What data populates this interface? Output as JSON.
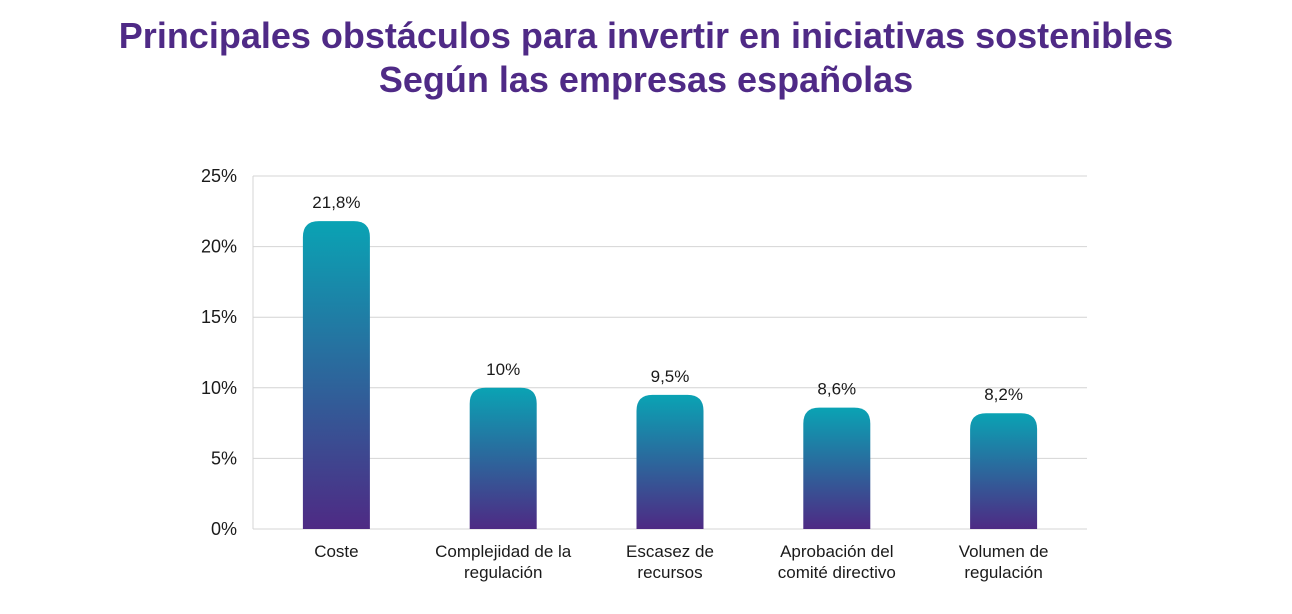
{
  "title": {
    "line1": "Principales obstáculos para invertir en iniciativas sostenibles",
    "line2": "Según las empresas españolas"
  },
  "colors": {
    "title": "#4f2a86",
    "bar_top": "#0aa3b4",
    "bar_bottom": "#4e2a84",
    "gridline": "#d4d4d4"
  },
  "chart_data": {
    "type": "bar",
    "categories": [
      [
        "Coste"
      ],
      [
        "Complejidad de la",
        "regulación"
      ],
      [
        "Escasez de",
        "recursos"
      ],
      [
        "Aprobación del",
        "comité directivo"
      ],
      [
        "Volumen de",
        "regulación"
      ]
    ],
    "values": [
      21.8,
      10,
      9.5,
      8.6,
      8.2
    ],
    "value_labels": [
      "21,8%",
      "10%",
      "9,5%",
      "8,6%",
      "8,2%"
    ],
    "ylim": [
      0,
      25
    ],
    "yticks": [
      0,
      5,
      10,
      15,
      20,
      25
    ],
    "ytick_labels": [
      "0%",
      "5%",
      "10%",
      "15%",
      "20%",
      "25%"
    ],
    "grid": true,
    "xlabel": "",
    "ylabel": ""
  }
}
